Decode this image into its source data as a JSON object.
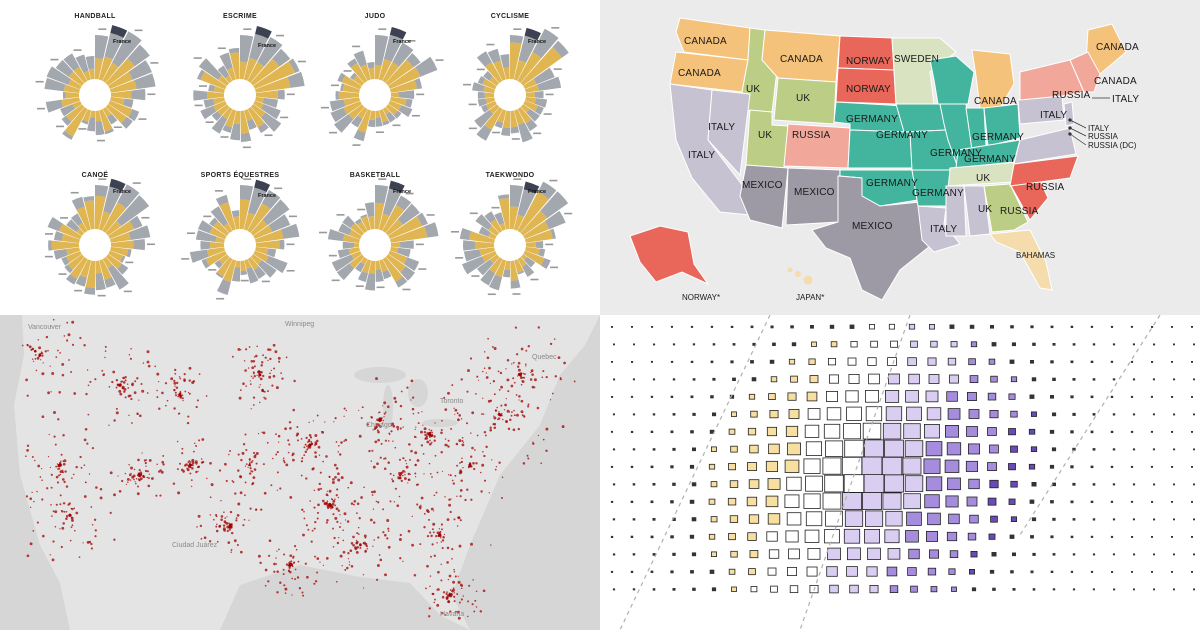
{
  "radial_panel": {
    "sports": [
      {
        "title": "HANDBALL",
        "highlight": "France"
      },
      {
        "title": "ESCRIME",
        "highlight": "France"
      },
      {
        "title": "JUDO",
        "highlight": "France"
      },
      {
        "title": "CYCLISME",
        "highlight": "France"
      },
      {
        "title": "CANOË",
        "highlight": "France"
      },
      {
        "title": "SPORTS ÉQUESTRES",
        "highlight": "France"
      },
      {
        "title": "BASKETBALL",
        "highlight": "France"
      },
      {
        "title": "TAEKWONDO",
        "highlight": "France"
      }
    ],
    "colors": {
      "gold": "#e0b653",
      "gray": "#a3a7ae",
      "dark": "#3d4252"
    }
  },
  "map_panel": {
    "labels": [
      "CANADA",
      "CANADA",
      "CANADA",
      "NORWAY",
      "SWEDEN",
      "CANADA",
      "NORWAY",
      "CANADA",
      "RUSSIA",
      "ITALY",
      "UK",
      "UK",
      "CANADA",
      "ITALY",
      "ITALY",
      "GERMANY",
      "UK",
      "RUSSIA",
      "GERMANY",
      "GERMANY",
      "ITALY",
      "RUSSIA",
      "ITALY",
      "RUSSIA (DC)",
      "GERMANY",
      "GERMANY",
      "GERMANY",
      "MEXICO",
      "MEXICO",
      "GERMANY",
      "UK",
      "RUSSIA",
      "UK",
      "MEXICO",
      "ITALY",
      "BAHAMAS",
      "NORWAY*",
      "JAPAN*",
      "RUSSIA"
    ],
    "colors": {
      "orange": "#f4c27a",
      "red": "#e8675a",
      "green_light": "#d9e3c2",
      "olive": "#bccd86",
      "pink": "#f2a79b",
      "teal": "#43b59e",
      "lavender": "#c6c2d2",
      "gray": "#9d99a5",
      "tan": "#f4dcad"
    }
  },
  "density_panel": {
    "places": [
      "Vancouver",
      "Winnipeg",
      "Quebec",
      "Toronto",
      "Chicago",
      "Ciudad Juárez",
      "Havana"
    ],
    "colors": {
      "point": "#a00000",
      "land": "#e4e4e4",
      "water": "#d6d6d6"
    }
  },
  "grid_panel": {
    "colors": {
      "yellow": "#f6dfa0",
      "white": "#ffffff",
      "purple_light": "#d9cdf1",
      "purple_mid": "#a58cdc",
      "purple_dark": "#6a4ab9"
    }
  }
}
